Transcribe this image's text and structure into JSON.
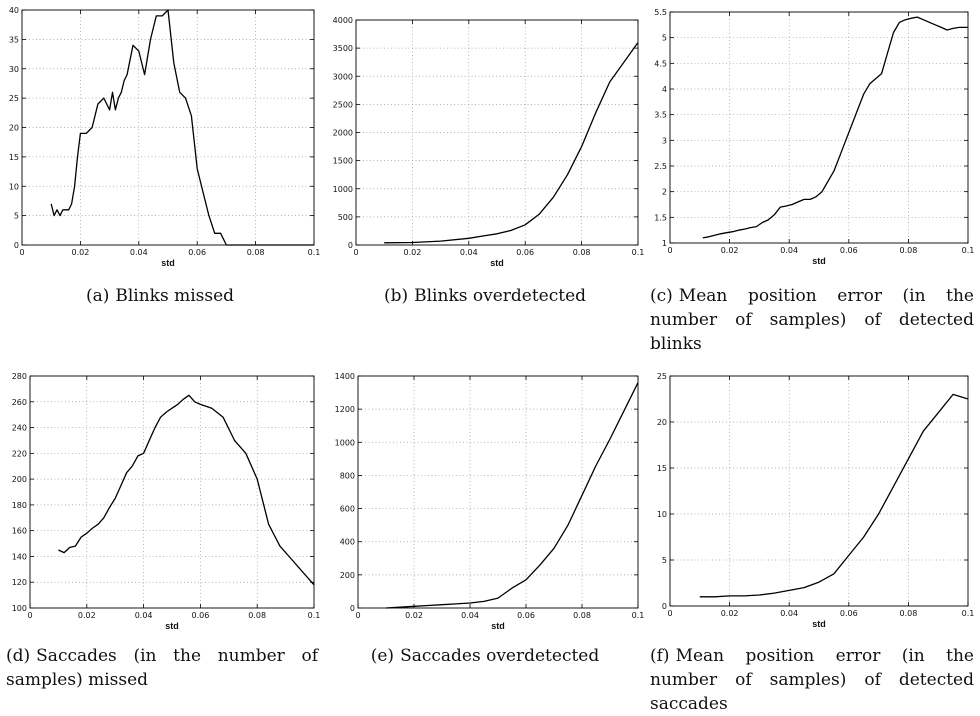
{
  "chart_data": [
    {
      "type": "line",
      "xlabel": "std",
      "xlim": [
        0,
        0.1
      ],
      "ylim": [
        0,
        40
      ],
      "grid": true,
      "xticks": [
        "0",
        "0.02",
        "0.04",
        "0.06",
        "0.08",
        "0.1"
      ],
      "yticks": [
        "0",
        "5",
        "10",
        "15",
        "20",
        "25",
        "30",
        "35",
        "40"
      ],
      "x": [
        0.01,
        0.011,
        0.012,
        0.013,
        0.014,
        0.015,
        0.016,
        0.017,
        0.018,
        0.019,
        0.02,
        0.022,
        0.024,
        0.025,
        0.026,
        0.028,
        0.03,
        0.031,
        0.032,
        0.033,
        0.034,
        0.035,
        0.036,
        0.038,
        0.04,
        0.042,
        0.044,
        0.046,
        0.048,
        0.05,
        0.052,
        0.054,
        0.056,
        0.058,
        0.06,
        0.062,
        0.064,
        0.066,
        0.068,
        0.07,
        0.072,
        0.074,
        0.076,
        0.08,
        0.084,
        0.088,
        0.092,
        0.096,
        0.1
      ],
      "values": [
        7,
        5,
        6,
        5,
        6,
        6,
        6,
        7,
        10,
        15,
        19,
        19,
        20,
        22,
        24,
        25,
        23,
        26,
        23,
        25,
        26,
        28,
        29,
        34,
        33,
        29,
        35,
        39,
        39,
        40,
        31,
        26,
        25,
        22,
        13,
        9,
        5,
        2,
        2,
        0,
        0,
        0,
        0,
        0,
        0,
        0,
        0,
        0,
        0
      ]
    },
    {
      "type": "line",
      "xlabel": "std",
      "xlim": [
        0,
        0.1
      ],
      "ylim": [
        0,
        4000
      ],
      "grid": true,
      "xticks": [
        "0",
        "0.02",
        "0.04",
        "0.06",
        "0.08",
        "0.1"
      ],
      "yticks": [
        "0",
        "500",
        "1000",
        "1500",
        "2000",
        "2500",
        "3000",
        "3500",
        "4000"
      ],
      "x": [
        0.01,
        0.02,
        0.03,
        0.04,
        0.045,
        0.05,
        0.055,
        0.06,
        0.065,
        0.07,
        0.075,
        0.08,
        0.085,
        0.09,
        0.095,
        0.1
      ],
      "values": [
        40,
        45,
        70,
        120,
        160,
        200,
        260,
        360,
        550,
        850,
        1250,
        1750,
        2350,
        2900,
        3250,
        3600
      ]
    },
    {
      "type": "line",
      "xlabel": "std",
      "xlim": [
        0,
        0.1
      ],
      "ylim": [
        1,
        5.5
      ],
      "grid": true,
      "xticks": [
        "0",
        "0.02",
        "0.04",
        "0.06",
        "0.08",
        "0.1"
      ],
      "yticks": [
        "1",
        "1.5",
        "2",
        "2.5",
        "3",
        "3.5",
        "4",
        "4.5",
        "5",
        "5.5"
      ],
      "x": [
        0.011,
        0.013,
        0.015,
        0.017,
        0.019,
        0.021,
        0.023,
        0.025,
        0.027,
        0.029,
        0.031,
        0.033,
        0.035,
        0.037,
        0.039,
        0.041,
        0.043,
        0.045,
        0.047,
        0.049,
        0.051,
        0.053,
        0.055,
        0.057,
        0.059,
        0.061,
        0.063,
        0.065,
        0.067,
        0.069,
        0.071,
        0.073,
        0.075,
        0.077,
        0.079,
        0.081,
        0.083,
        0.085,
        0.087,
        0.089,
        0.091,
        0.093,
        0.095,
        0.097,
        0.1
      ],
      "values": [
        1.1,
        1.12,
        1.15,
        1.18,
        1.2,
        1.22,
        1.25,
        1.27,
        1.3,
        1.32,
        1.4,
        1.45,
        1.55,
        1.7,
        1.72,
        1.75,
        1.8,
        1.85,
        1.85,
        1.9,
        2.0,
        2.2,
        2.4,
        2.7,
        3.0,
        3.3,
        3.6,
        3.9,
        4.1,
        4.2,
        4.3,
        4.7,
        5.1,
        5.3,
        5.35,
        5.38,
        5.4,
        5.35,
        5.3,
        5.25,
        5.2,
        5.15,
        5.18,
        5.2,
        5.2
      ]
    },
    {
      "type": "line",
      "xlabel": "std",
      "xlim": [
        0,
        0.1
      ],
      "ylim": [
        100,
        280
      ],
      "grid": true,
      "xticks": [
        "0",
        "0.02",
        "0.04",
        "0.06",
        "0.08",
        "0.1"
      ],
      "yticks": [
        "100",
        "120",
        "140",
        "160",
        "180",
        "200",
        "220",
        "240",
        "260",
        "280"
      ],
      "x": [
        0.01,
        0.012,
        0.014,
        0.016,
        0.018,
        0.02,
        0.022,
        0.024,
        0.026,
        0.028,
        0.03,
        0.032,
        0.034,
        0.036,
        0.038,
        0.04,
        0.042,
        0.044,
        0.046,
        0.048,
        0.05,
        0.052,
        0.054,
        0.056,
        0.058,
        0.06,
        0.064,
        0.068,
        0.072,
        0.076,
        0.08,
        0.084,
        0.088,
        0.092,
        0.096,
        0.1
      ],
      "values": [
        145,
        143,
        147,
        148,
        155,
        158,
        162,
        165,
        170,
        178,
        185,
        195,
        205,
        210,
        218,
        220,
        230,
        240,
        248,
        252,
        255,
        258,
        262,
        265,
        260,
        258,
        255,
        248,
        230,
        220,
        200,
        165,
        148,
        138,
        128,
        118
      ]
    },
    {
      "type": "line",
      "xlabel": "std",
      "xlim": [
        0,
        0.1
      ],
      "ylim": [
        0,
        1400
      ],
      "grid": true,
      "xticks": [
        "0",
        "0.02",
        "0.04",
        "0.06",
        "0.08",
        "0.1"
      ],
      "yticks": [
        "0",
        "200",
        "400",
        "600",
        "800",
        "1000",
        "1200",
        "1400"
      ],
      "x": [
        0.01,
        0.015,
        0.02,
        0.025,
        0.03,
        0.035,
        0.04,
        0.045,
        0.05,
        0.055,
        0.06,
        0.065,
        0.07,
        0.075,
        0.08,
        0.085,
        0.09,
        0.095,
        0.1
      ],
      "values": [
        0,
        5,
        10,
        15,
        20,
        25,
        30,
        40,
        60,
        120,
        170,
        260,
        360,
        500,
        680,
        860,
        1020,
        1190,
        1360
      ]
    },
    {
      "type": "line",
      "xlabel": "std",
      "xlim": [
        0,
        0.1
      ],
      "ylim": [
        0,
        25
      ],
      "grid": true,
      "xticks": [
        "0",
        "0.02",
        "0.04",
        "0.06",
        "0.08",
        "0.1"
      ],
      "yticks": [
        "0",
        "5",
        "10",
        "15",
        "20",
        "25"
      ],
      "x": [
        0.01,
        0.015,
        0.02,
        0.025,
        0.03,
        0.035,
        0.04,
        0.045,
        0.05,
        0.055,
        0.06,
        0.065,
        0.07,
        0.075,
        0.08,
        0.085,
        0.09,
        0.095,
        0.1
      ],
      "values": [
        1.0,
        1.0,
        1.1,
        1.1,
        1.2,
        1.4,
        1.7,
        2.0,
        2.6,
        3.5,
        5.5,
        7.5,
        10,
        13,
        16,
        19,
        21,
        23,
        22.5
      ]
    }
  ],
  "captions": [
    {
      "label": "(a)",
      "text": "Blinks missed"
    },
    {
      "label": "(b)",
      "text": "Blinks overdetected"
    },
    {
      "label": "(c)",
      "text": "Mean position error (in the number of samples) of detected blinks"
    },
    {
      "label": "(d)",
      "text": "Saccades (in the number of samples) missed"
    },
    {
      "label": "(e)",
      "text": "Saccades overdetected"
    },
    {
      "label": "(f)",
      "text": "Mean position error (in the number of samples) of detected saccades"
    }
  ]
}
